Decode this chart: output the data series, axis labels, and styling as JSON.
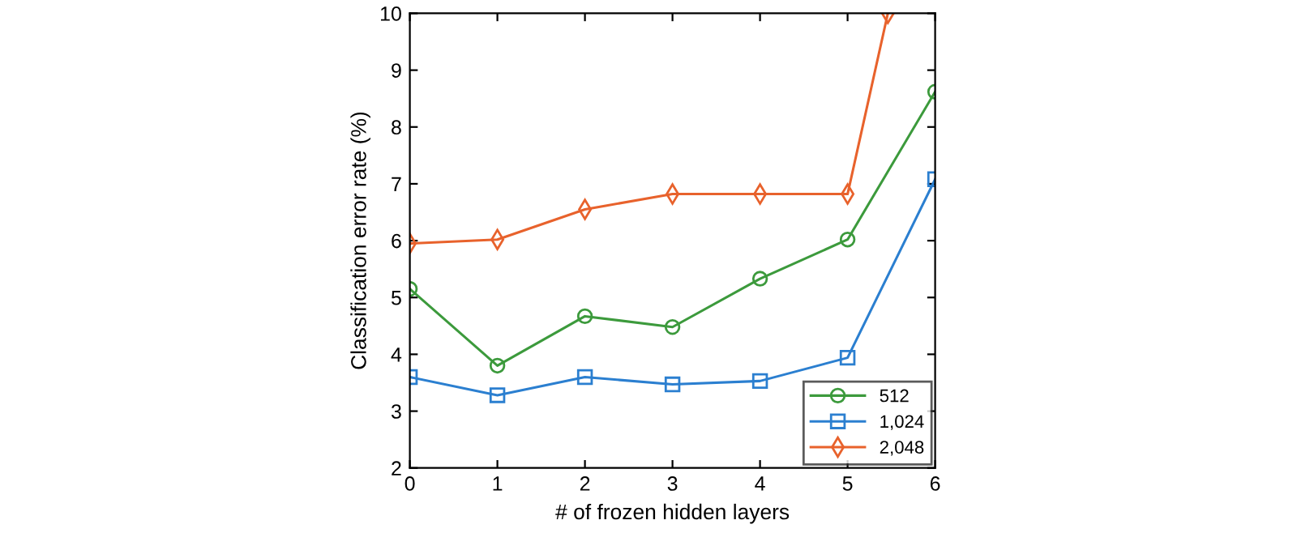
{
  "chart_data": {
    "type": "line",
    "xlabel": "# of frozen hidden layers",
    "ylabel": "Classification error rate (%)",
    "x": [
      0,
      1,
      2,
      3,
      4,
      5,
      6
    ],
    "xlim": [
      0,
      6
    ],
    "xticks": [
      0,
      1,
      2,
      3,
      4,
      5,
      6
    ],
    "ylim": [
      2,
      10
    ],
    "yticks": [
      2,
      3,
      4,
      5,
      6,
      7,
      8,
      9,
      10
    ],
    "grid": false,
    "legend": "bottom right",
    "line_style": "solid",
    "series": [
      {
        "name": "512",
        "color": "#3c9a3c",
        "marker": "circle",
        "values": [
          5.15,
          3.8,
          4.67,
          4.48,
          5.33,
          6.02,
          8.62
        ]
      },
      {
        "name": "1,024",
        "color": "#2b7fd0",
        "marker": "square",
        "values": [
          3.6,
          3.28,
          3.6,
          3.47,
          3.53,
          3.94,
          7.08
        ]
      },
      {
        "name": "2,048",
        "color": "#e8622c",
        "marker": "diamond",
        "x": [
          0,
          1,
          2,
          3,
          4,
          5,
          5.46
        ],
        "values": [
          5.95,
          6.02,
          6.55,
          6.82,
          6.82,
          6.82,
          10
        ]
      }
    ]
  }
}
